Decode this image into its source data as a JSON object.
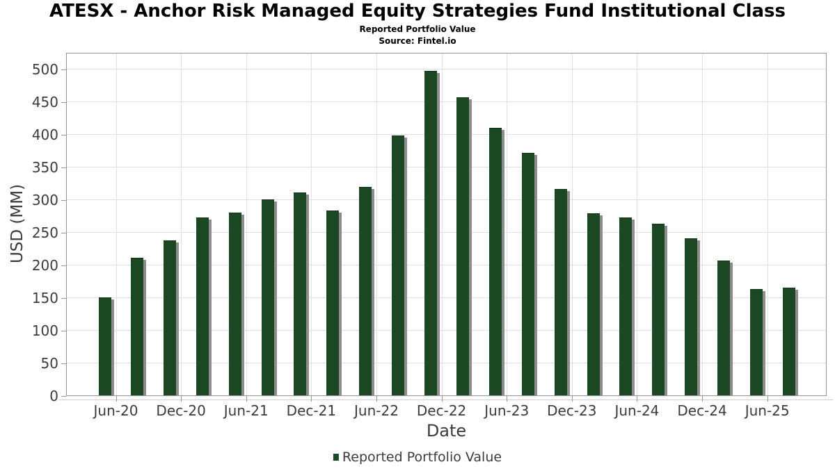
{
  "chart_data": {
    "type": "bar",
    "title": "ATESX - Anchor Risk Managed Equity Strategies Fund Institutional Class",
    "subtitle": "Reported Portfolio Value",
    "source": "Source: Fintel.io",
    "xlabel": "Date",
    "ylabel": "USD (MM)",
    "categories": [
      "Jun-20",
      "Sep-20",
      "Dec-20",
      "Mar-21",
      "Jun-21",
      "Sep-21",
      "Dec-21",
      "Mar-22",
      "Jun-22",
      "Sep-22",
      "Dec-22",
      "Mar-23",
      "Jun-23",
      "Sep-23",
      "Dec-23",
      "Mar-24",
      "Jun-24",
      "Sep-24",
      "Dec-24",
      "Mar-25",
      "Jun-25",
      "Sep-25"
    ],
    "values": [
      151,
      212,
      238,
      274,
      281,
      301,
      312,
      284,
      321,
      399,
      498,
      458,
      411,
      373,
      317,
      280,
      274,
      264,
      242,
      208,
      164,
      166
    ],
    "x_tick_labels": [
      "Jun-20",
      "Dec-20",
      "Jun-21",
      "Dec-21",
      "Jun-22",
      "Dec-22",
      "Jun-23",
      "Dec-23",
      "Jun-24",
      "Dec-24",
      "Jun-25"
    ],
    "y_ticks": [
      0,
      50,
      100,
      150,
      200,
      250,
      300,
      350,
      400,
      450,
      500
    ],
    "ylim": [
      0,
      526
    ],
    "grid": true,
    "legend": {
      "label": "Reported Portfolio Value",
      "position": "bottom-center"
    },
    "colors": {
      "bar": "#1c4723",
      "bar_top_edge": "#123018",
      "bar_shadow": "#8d8d8d",
      "gridline": "#e0e0e0",
      "frame": "#949494",
      "tick_text": "#3b3b3b",
      "title_text": "#000000"
    }
  }
}
